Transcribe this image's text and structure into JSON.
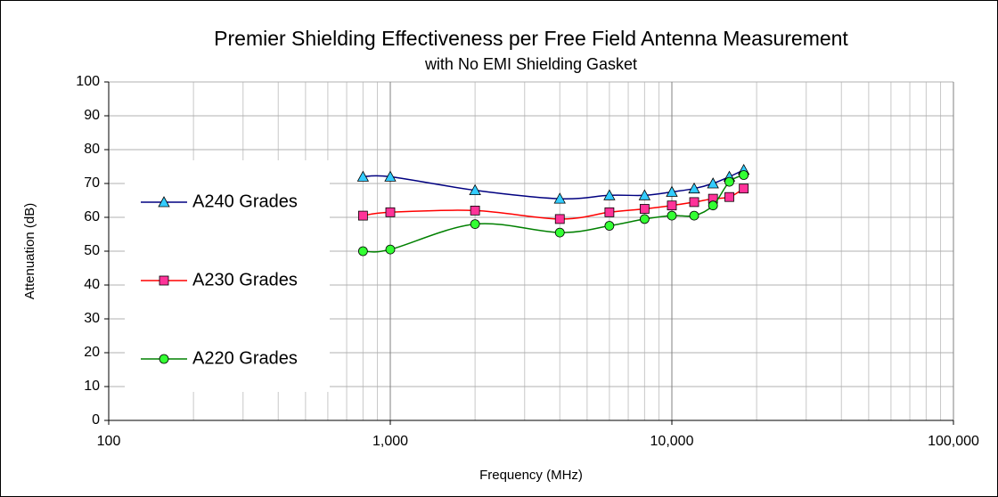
{
  "chart_data": {
    "type": "line",
    "title": "Premier Shielding Effectiveness per Free Field Antenna Measurement",
    "subtitle": "with No EMI Shielding Gasket",
    "x_label": "Frequency (MHz)",
    "y_label": "Attenuation (dB)",
    "x": [
      800,
      1000,
      2000,
      4000,
      6000,
      8000,
      10000,
      12000,
      14000,
      16000,
      18000
    ],
    "series": [
      {
        "name": "A240 Grades",
        "color": "#000080",
        "marker_color": "#33ccff",
        "marker": "triangle",
        "values": [
          72,
          72,
          68,
          65.5,
          66.5,
          66.5,
          67.5,
          68.5,
          70,
          72,
          74
        ]
      },
      {
        "name": "A230 Grades",
        "color": "#ff0000",
        "marker_color": "#ff3399",
        "marker": "square",
        "values": [
          60.5,
          61.5,
          62,
          59.5,
          61.5,
          62.5,
          63.5,
          64.5,
          65.5,
          66,
          68.5
        ]
      },
      {
        "name": "A220 Grades",
        "color": "#008000",
        "marker_color": "#33ff33",
        "marker": "circle",
        "values": [
          50,
          50.5,
          58,
          55.5,
          57.5,
          59.5,
          60.5,
          60.5,
          63.5,
          70.5,
          72.5
        ]
      }
    ],
    "xlim": [
      100,
      100000
    ],
    "x_log": true,
    "xticks": [
      100,
      {
        "value": 1000,
        "label": "1,000"
      },
      {
        "value": 10000,
        "label": "10,000"
      },
      {
        "value": 100000,
        "label": "100,000"
      }
    ],
    "ylim": [
      0,
      100
    ],
    "yticks": [
      0,
      10,
      20,
      30,
      40,
      50,
      60,
      70,
      80,
      90,
      100
    ],
    "grid": true,
    "legend": "left"
  }
}
